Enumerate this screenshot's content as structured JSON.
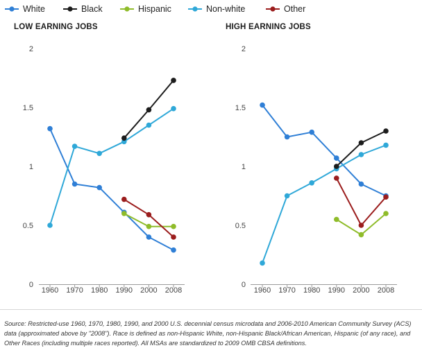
{
  "legend": [
    {
      "name": "White",
      "color": "#2f7fd6"
    },
    {
      "name": "Black",
      "color": "#1c1c1c"
    },
    {
      "name": "Hispanic",
      "color": "#8fbc2a"
    },
    {
      "name": "Non-white",
      "color": "#2fa8d8"
    },
    {
      "name": "Other",
      "color": "#9b1d1d"
    }
  ],
  "chart_data": [
    {
      "type": "line",
      "title": "LOW EARNING JOBS",
      "categories": [
        "1960",
        "1970",
        "1980",
        "1990",
        "2000",
        "2008"
      ],
      "ylim": [
        0,
        2
      ],
      "yticks": [
        "0",
        "0.5",
        "1",
        "1.5",
        "2"
      ],
      "grid": false,
      "series": [
        {
          "name": "White",
          "color": "#2f7fd6",
          "values": [
            1.32,
            0.85,
            0.82,
            0.61,
            0.4,
            0.29
          ]
        },
        {
          "name": "Non-white",
          "color": "#2fa8d8",
          "values": [
            0.5,
            1.17,
            1.11,
            1.21,
            1.35,
            1.49
          ]
        },
        {
          "name": "Black",
          "color": "#1c1c1c",
          "values": [
            null,
            null,
            null,
            1.24,
            1.48,
            1.73
          ]
        },
        {
          "name": "Hispanic",
          "color": "#8fbc2a",
          "values": [
            null,
            null,
            null,
            0.6,
            0.49,
            0.49
          ]
        },
        {
          "name": "Other",
          "color": "#9b1d1d",
          "values": [
            null,
            null,
            null,
            0.72,
            0.59,
            0.4
          ]
        }
      ]
    },
    {
      "type": "line",
      "title": "HIGH EARNING JOBS",
      "categories": [
        "1960",
        "1970",
        "1980",
        "1990",
        "2000",
        "2008"
      ],
      "ylim": [
        0,
        2
      ],
      "yticks": [
        "0",
        "0.5",
        "1",
        "1.5",
        "2"
      ],
      "grid": false,
      "series": [
        {
          "name": "White",
          "color": "#2f7fd6",
          "values": [
            1.52,
            1.25,
            1.29,
            1.07,
            0.85,
            0.75
          ]
        },
        {
          "name": "Non-white",
          "color": "#2fa8d8",
          "values": [
            0.18,
            0.75,
            0.86,
            0.98,
            1.1,
            1.18
          ]
        },
        {
          "name": "Black",
          "color": "#1c1c1c",
          "values": [
            null,
            null,
            null,
            1.0,
            1.2,
            1.3
          ]
        },
        {
          "name": "Hispanic",
          "color": "#8fbc2a",
          "values": [
            null,
            null,
            null,
            0.55,
            0.42,
            0.6
          ]
        },
        {
          "name": "Other",
          "color": "#9b1d1d",
          "values": [
            null,
            null,
            null,
            0.9,
            0.5,
            0.74
          ]
        }
      ]
    }
  ],
  "source": "Source: Restricted-use 1960, 1970, 1980, 1990, and 2000 U.S. decennial census microdata and 2006-2010 American Community Survey (ACS) data (approximated above by \"2008\"). Race is defined as non-Hispanic White, non-Hispanic Black/African American, Hispanic (of any race), and Other Races (including multiple races reported). All MSAs are standardized to 2009 OMB CBSA definitions."
}
